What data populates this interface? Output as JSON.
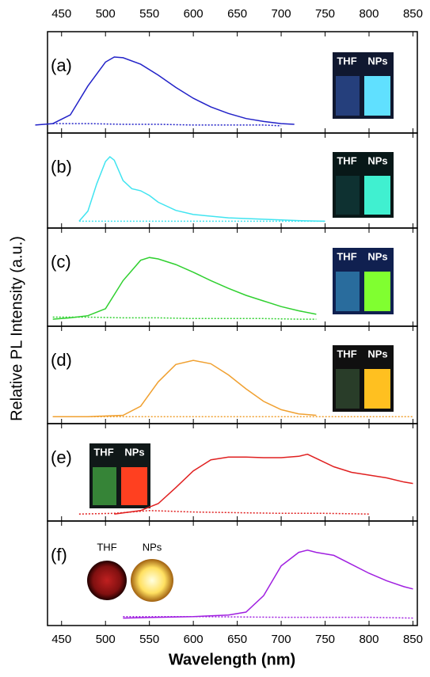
{
  "figure": {
    "ylabel": "Relative PL Intensity (a.u.)",
    "xlabel": "Wavelength (nm)"
  },
  "chart_data": [
    {
      "type": "line",
      "label": "(a)",
      "xlim": [
        434,
        855
      ],
      "ylim": [
        -0.1,
        1.3
      ],
      "xticks": [
        450,
        500,
        550,
        600,
        650,
        700,
        750,
        800,
        850
      ],
      "inset": {
        "labels": [
          "THF",
          "NPs"
        ]
      },
      "series": [
        {
          "color": "#2222c8",
          "style": "solid",
          "x": [
            420,
            440,
            460,
            480,
            500,
            510,
            520,
            540,
            560,
            580,
            600,
            620,
            640,
            660,
            680,
            700,
            715
          ],
          "values": [
            0.01,
            0.03,
            0.15,
            0.55,
            0.88,
            0.95,
            0.94,
            0.85,
            0.7,
            0.53,
            0.38,
            0.26,
            0.17,
            0.1,
            0.06,
            0.03,
            0.02
          ]
        },
        {
          "color": "#2222c8",
          "style": "dotted",
          "x": [
            440,
            480,
            520,
            560,
            600,
            640,
            680,
            700
          ],
          "values": [
            0.03,
            0.03,
            0.02,
            0.02,
            0.01,
            0.01,
            0.01,
            0
          ]
        }
      ]
    },
    {
      "type": "line",
      "label": "(b)",
      "xlim": [
        434,
        855
      ],
      "ylim": [
        -0.1,
        1.3
      ],
      "xticks": [
        450,
        500,
        550,
        600,
        650,
        700,
        750,
        800,
        850
      ],
      "inset": {
        "labels": [
          "THF",
          "NPs"
        ]
      },
      "series": [
        {
          "color": "#40e4f0",
          "style": "solid",
          "x": [
            470,
            480,
            490,
            500,
            505,
            510,
            520,
            530,
            540,
            550,
            560,
            580,
            600,
            640,
            680,
            720,
            750
          ],
          "values": [
            0,
            0.15,
            0.55,
            0.88,
            0.95,
            0.9,
            0.6,
            0.48,
            0.45,
            0.38,
            0.28,
            0.16,
            0.1,
            0.05,
            0.03,
            0.01,
            0
          ]
        },
        {
          "color": "#40e4f0",
          "style": "dotted",
          "x": [
            470,
            560,
            660,
            750
          ],
          "values": [
            0,
            0,
            0,
            0
          ]
        }
      ]
    },
    {
      "type": "line",
      "label": "(c)",
      "xlim": [
        434,
        855
      ],
      "ylim": [
        -0.1,
        1.3
      ],
      "xticks": [
        450,
        500,
        550,
        600,
        650,
        700,
        750,
        800,
        850
      ],
      "inset": {
        "labels": [
          "THF",
          "NPs"
        ]
      },
      "series": [
        {
          "color": "#30d030",
          "style": "solid",
          "x": [
            440,
            460,
            480,
            500,
            520,
            540,
            550,
            560,
            580,
            600,
            620,
            640,
            660,
            680,
            700,
            720,
            740
          ],
          "values": [
            0,
            0.02,
            0.05,
            0.15,
            0.55,
            0.84,
            0.88,
            0.86,
            0.78,
            0.67,
            0.55,
            0.44,
            0.34,
            0.26,
            0.18,
            0.12,
            0.07
          ]
        },
        {
          "color": "#30d030",
          "style": "dotted",
          "x": [
            440,
            480,
            520,
            560,
            600,
            640,
            680,
            720,
            740
          ],
          "values": [
            0.03,
            0.03,
            0.02,
            0.02,
            0.01,
            0.01,
            0.01,
            0,
            0
          ]
        }
      ]
    },
    {
      "type": "line",
      "label": "(d)",
      "xlim": [
        434,
        855
      ],
      "ylim": [
        -0.1,
        1.3
      ],
      "xticks": [
        450,
        500,
        550,
        600,
        650,
        700,
        750,
        800,
        850
      ],
      "inset": {
        "labels": [
          "THF",
          "NPs"
        ]
      },
      "series": [
        {
          "color": "#f0a030",
          "style": "solid",
          "x": [
            440,
            480,
            520,
            540,
            560,
            580,
            600,
            620,
            640,
            660,
            680,
            700,
            720,
            740
          ],
          "values": [
            0,
            0,
            0.02,
            0.15,
            0.5,
            0.75,
            0.81,
            0.76,
            0.6,
            0.4,
            0.22,
            0.1,
            0.04,
            0.02
          ]
        },
        {
          "color": "#f0a030",
          "style": "dotted",
          "x": [
            440,
            520,
            600,
            680,
            760,
            850
          ],
          "values": [
            0,
            0,
            0,
            0,
            0,
            0
          ]
        }
      ]
    },
    {
      "type": "line",
      "label": "(e)",
      "xlim": [
        434,
        855
      ],
      "ylim": [
        -0.1,
        1.3
      ],
      "xticks": [
        450,
        500,
        550,
        600,
        650,
        700,
        750,
        800,
        850
      ],
      "inset": {
        "labels": [
          "THF",
          "NPs"
        ]
      },
      "series": [
        {
          "color": "#e02020",
          "style": "solid",
          "x": [
            510,
            540,
            560,
            580,
            600,
            620,
            640,
            660,
            680,
            700,
            720,
            730,
            740,
            760,
            780,
            800,
            820,
            840,
            850
          ],
          "values": [
            0,
            0.05,
            0.15,
            0.38,
            0.62,
            0.78,
            0.82,
            0.82,
            0.81,
            0.81,
            0.83,
            0.86,
            0.8,
            0.68,
            0.6,
            0.56,
            0.52,
            0.46,
            0.44
          ]
        },
        {
          "color": "#e02020",
          "style": "dotted",
          "x": [
            470,
            510,
            550,
            600,
            650,
            700,
            750,
            800
          ],
          "values": [
            0,
            0.01,
            0.05,
            0.03,
            0.02,
            0.01,
            0.01,
            0
          ]
        }
      ]
    },
    {
      "type": "line",
      "label": "(f)",
      "xlim": [
        434,
        855
      ],
      "ylim": [
        -0.1,
        1.3
      ],
      "xticks": [
        450,
        500,
        550,
        600,
        650,
        700,
        750,
        800,
        850
      ],
      "inset": {
        "labels": [
          "THF",
          "NPs"
        ]
      },
      "series": [
        {
          "color": "#a020e0",
          "style": "solid",
          "x": [
            520,
            560,
            600,
            640,
            660,
            680,
            700,
            720,
            730,
            740,
            760,
            780,
            800,
            820,
            840,
            850
          ],
          "values": [
            0,
            0.01,
            0.02,
            0.04,
            0.08,
            0.3,
            0.7,
            0.88,
            0.91,
            0.88,
            0.84,
            0.72,
            0.6,
            0.5,
            0.42,
            0.39
          ]
        },
        {
          "color": "#a020e0",
          "style": "dotted",
          "x": [
            520,
            600,
            700,
            800,
            850
          ],
          "values": [
            0.02,
            0.02,
            0.01,
            0.01,
            0
          ]
        }
      ]
    }
  ]
}
